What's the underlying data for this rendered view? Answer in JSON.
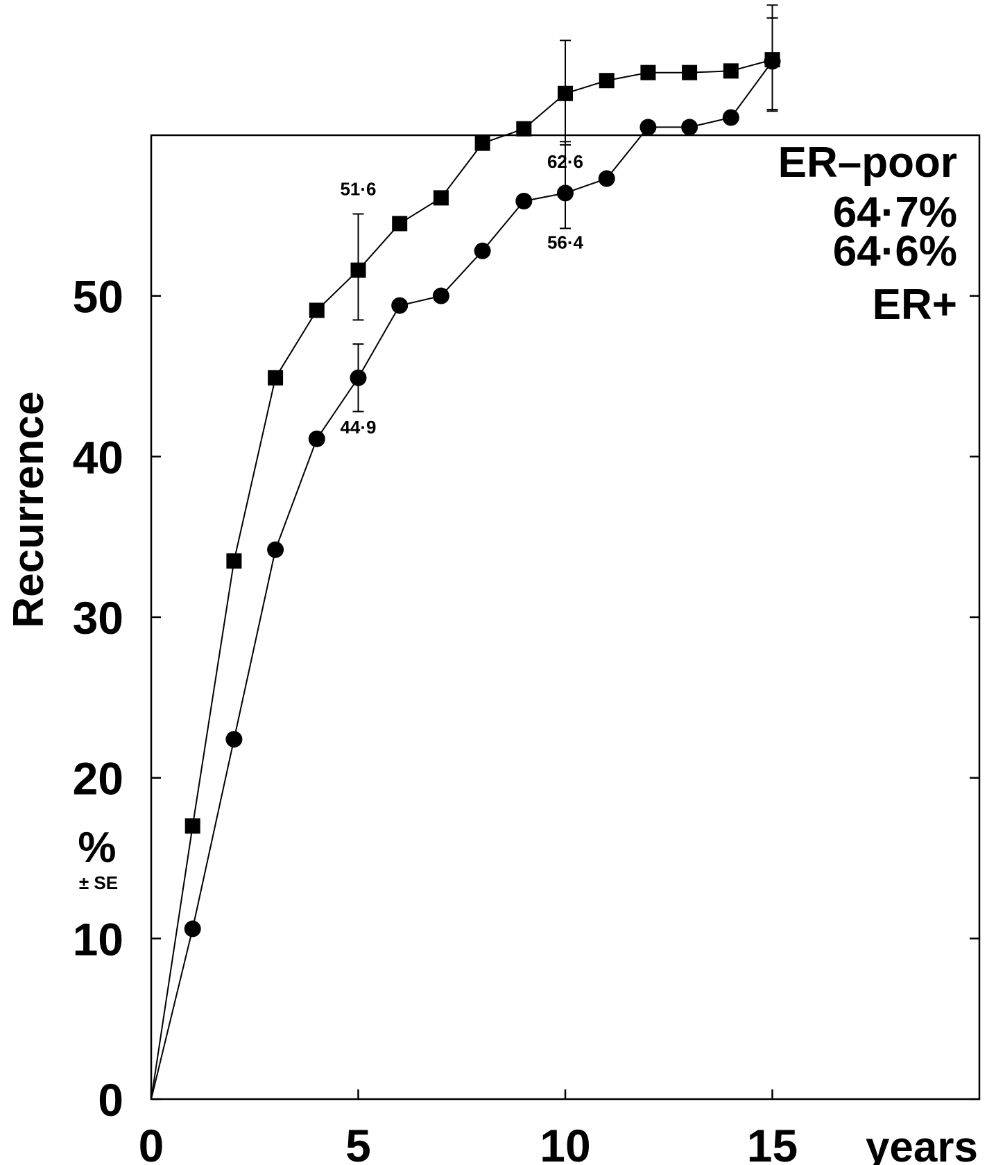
{
  "chart_data": {
    "type": "line",
    "ylabel": "Recurrence",
    "ylabel_unit": "%",
    "ylabel_sub": "± SE",
    "xlabel": "years",
    "xlim": [
      0,
      20
    ],
    "ylim": [
      0,
      60
    ],
    "x_ticks": [
      0,
      5,
      10,
      15
    ],
    "y_ticks": [
      0,
      10,
      20,
      30,
      40,
      50
    ],
    "series": [
      {
        "name": "ER–poor",
        "marker": "square",
        "x": [
          0,
          1,
          2,
          3,
          4,
          5,
          6,
          7,
          8,
          9,
          10,
          11,
          12,
          13,
          14,
          15
        ],
        "y": [
          0,
          17.0,
          33.5,
          44.9,
          49.1,
          51.6,
          54.5,
          56.1,
          59.5,
          60.4,
          62.6,
          63.4,
          63.9,
          63.9,
          64.0,
          64.7
        ],
        "error_bars": [
          {
            "x": 5,
            "upper": 55.1,
            "lower": 48.5
          },
          {
            "x": 10,
            "upper": 65.9,
            "lower": 59.4
          },
          {
            "x": 15,
            "upper": 68.1,
            "lower": 61.5
          }
        ]
      },
      {
        "name": "ER+",
        "marker": "circle",
        "x": [
          0,
          1,
          2,
          3,
          4,
          5,
          6,
          7,
          8,
          9,
          10,
          11,
          12,
          13,
          14,
          15
        ],
        "y": [
          0,
          10.6,
          22.4,
          34.2,
          41.1,
          44.9,
          49.4,
          50.0,
          52.8,
          55.9,
          56.4,
          57.3,
          60.5,
          60.5,
          61.1,
          64.6
        ],
        "error_bars": [
          {
            "x": 5,
            "upper": 47.0,
            "lower": 42.8
          },
          {
            "x": 10,
            "upper": 59.6,
            "lower": 54.2
          },
          {
            "x": 15,
            "upper": 67.3,
            "lower": 61.6
          }
        ]
      }
    ],
    "annotations": [
      {
        "text": "51·6",
        "x": 5,
        "y": 51.6,
        "series": "ER–poor",
        "pos": "above"
      },
      {
        "text": "44·9",
        "x": 5,
        "y": 44.9,
        "series": "ER+",
        "pos": "below"
      },
      {
        "text": "62·6",
        "x": 10,
        "y": 62.6,
        "series": "ER–poor",
        "pos": "below"
      },
      {
        "text": "56·4",
        "x": 10,
        "y": 56.4,
        "series": "ER+",
        "pos": "below"
      }
    ],
    "legend": [
      "ER–poor",
      "64·7%",
      "64·6%",
      "ER+"
    ],
    "legend_position": "top-right",
    "grid": false
  }
}
